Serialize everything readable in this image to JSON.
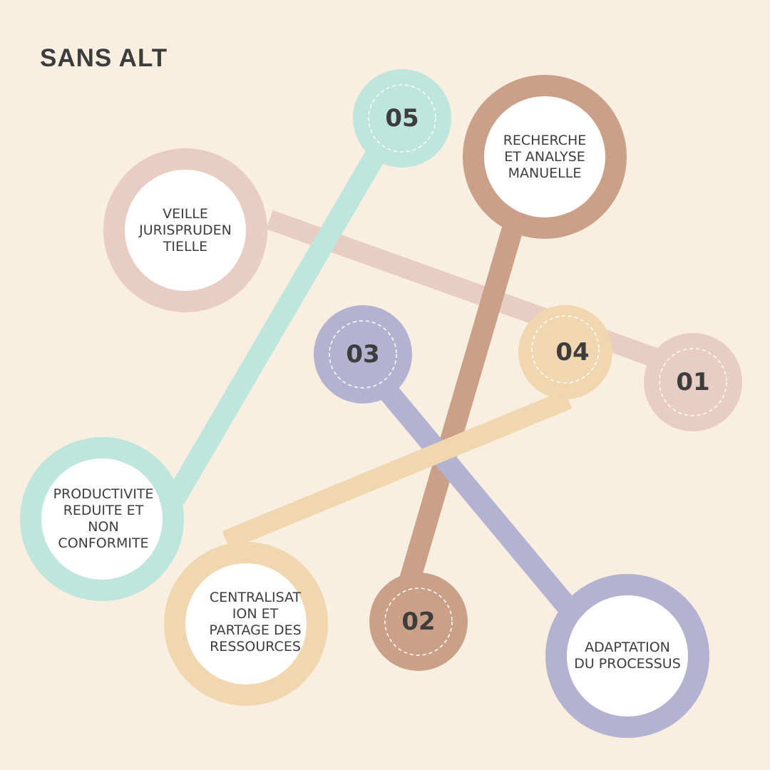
{
  "title": "SANS ALT",
  "colors": {
    "background": "#f8efe1",
    "pink": "#e7cdc2",
    "brown": "#cba088",
    "lavender": "#b3b3d1",
    "sand": "#f0d7b0",
    "mint": "#bfe6dd",
    "white": "#ffffff"
  },
  "steps": [
    {
      "number": "01",
      "label": "VEILLE JURISPRUDEN TIELLE",
      "color": "pink"
    },
    {
      "number": "02",
      "label": "RECHERCHE ET ANALYSE MANUELLE",
      "color": "brown"
    },
    {
      "number": "03",
      "label": "ADAPTATION DU PROCESSUS",
      "color": "lavender"
    },
    {
      "number": "04",
      "label": "CENTRALISAT ION ET PARTAGE DES RESSOURCES",
      "color": "sand"
    },
    {
      "number": "05",
      "label": "PRODUCTIVITE REDUITE ET NON CONFORMITE",
      "color": "mint"
    }
  ]
}
